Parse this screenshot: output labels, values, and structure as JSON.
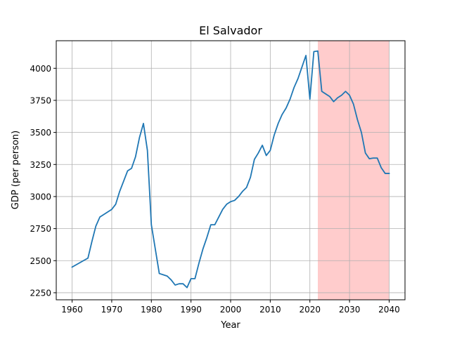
{
  "chart_data": {
    "type": "line",
    "title": "El Salvador",
    "xlabel": "Year",
    "ylabel": "GDP (per person)",
    "xlim": [
      1956,
      2044
    ],
    "ylim": [
      2195,
      4215
    ],
    "grid": true,
    "x_ticks": [
      1960,
      1970,
      1980,
      1990,
      2000,
      2010,
      2020,
      2030,
      2040
    ],
    "y_ticks": [
      2250,
      2500,
      2750,
      3000,
      3250,
      3500,
      3750,
      4000
    ],
    "highlight_span": {
      "x_start": 2022,
      "x_end": 2040,
      "color": "#ffcccc"
    },
    "series": [
      {
        "color": "#1f77b4",
        "points": [
          [
            1960,
            2450
          ],
          [
            1964,
            2520
          ],
          [
            1965,
            2650
          ],
          [
            1966,
            2770
          ],
          [
            1967,
            2840
          ],
          [
            1968,
            2860
          ],
          [
            1969,
            2880
          ],
          [
            1970,
            2900
          ],
          [
            1971,
            2940
          ],
          [
            1972,
            3040
          ],
          [
            1973,
            3120
          ],
          [
            1974,
            3200
          ],
          [
            1975,
            3220
          ],
          [
            1976,
            3310
          ],
          [
            1977,
            3460
          ],
          [
            1978,
            3570
          ],
          [
            1979,
            3360
          ],
          [
            1980,
            2780
          ],
          [
            1981,
            2590
          ],
          [
            1982,
            2400
          ],
          [
            1983,
            2390
          ],
          [
            1984,
            2380
          ],
          [
            1985,
            2350
          ],
          [
            1986,
            2310
          ],
          [
            1987,
            2320
          ],
          [
            1988,
            2320
          ],
          [
            1989,
            2290
          ],
          [
            1990,
            2360
          ],
          [
            1991,
            2360
          ],
          [
            1992,
            2480
          ],
          [
            1993,
            2590
          ],
          [
            1994,
            2680
          ],
          [
            1995,
            2780
          ],
          [
            1996,
            2780
          ],
          [
            1997,
            2840
          ],
          [
            1998,
            2900
          ],
          [
            1999,
            2940
          ],
          [
            2000,
            2960
          ],
          [
            2001,
            2970
          ],
          [
            2002,
            3000
          ],
          [
            2003,
            3040
          ],
          [
            2004,
            3070
          ],
          [
            2005,
            3150
          ],
          [
            2006,
            3290
          ],
          [
            2007,
            3340
          ],
          [
            2008,
            3400
          ],
          [
            2009,
            3320
          ],
          [
            2010,
            3360
          ],
          [
            2011,
            3480
          ],
          [
            2012,
            3570
          ],
          [
            2013,
            3640
          ],
          [
            2014,
            3690
          ],
          [
            2015,
            3760
          ],
          [
            2016,
            3850
          ],
          [
            2017,
            3920
          ],
          [
            2018,
            4010
          ],
          [
            2019,
            4100
          ],
          [
            2020,
            3760
          ],
          [
            2021,
            4130
          ],
          [
            2022,
            4135
          ],
          [
            2023,
            3820
          ],
          [
            2024,
            3800
          ],
          [
            2025,
            3780
          ],
          [
            2026,
            3740
          ],
          [
            2027,
            3770
          ],
          [
            2028,
            3790
          ],
          [
            2029,
            3820
          ],
          [
            2030,
            3790
          ],
          [
            2031,
            3720
          ],
          [
            2032,
            3600
          ],
          [
            2033,
            3500
          ],
          [
            2034,
            3340
          ],
          [
            2035,
            3295
          ],
          [
            2036,
            3300
          ],
          [
            2037,
            3300
          ],
          [
            2038,
            3225
          ],
          [
            2039,
            3180
          ],
          [
            2040,
            3180
          ]
        ]
      }
    ]
  }
}
